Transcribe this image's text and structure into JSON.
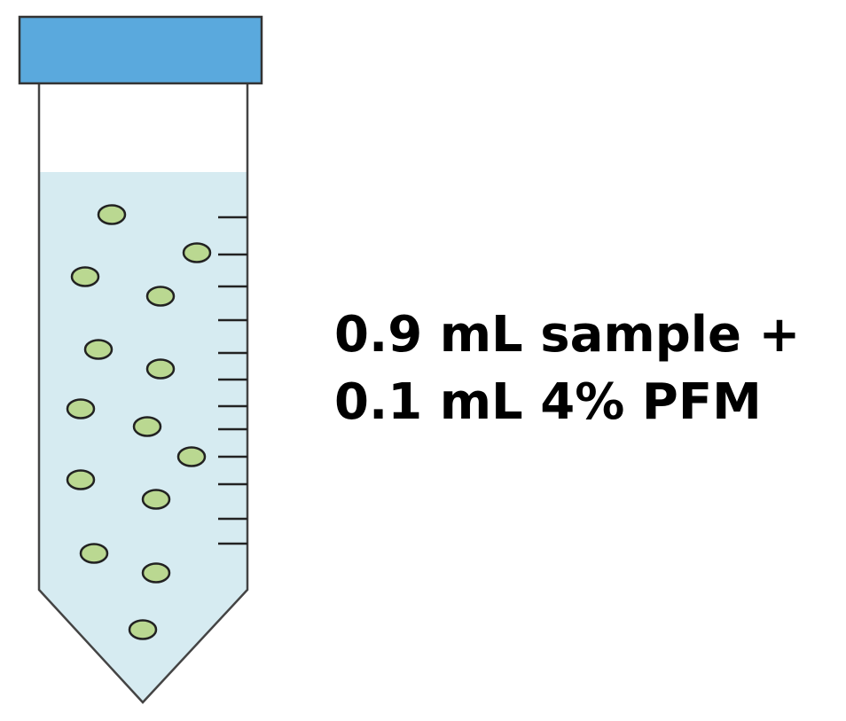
{
  "label": {
    "line1": "0.9 mL sample +",
    "line2": "0.1 mL 4% PFM"
  },
  "colors": {
    "cap": "#5aa9dd",
    "liquid": "#d6ebf1",
    "cell": "#bad891",
    "outline": "#444444",
    "text": "#000000"
  },
  "icons": {
    "tube": "centrifuge-tube-icon",
    "cell": "cell-icon"
  }
}
